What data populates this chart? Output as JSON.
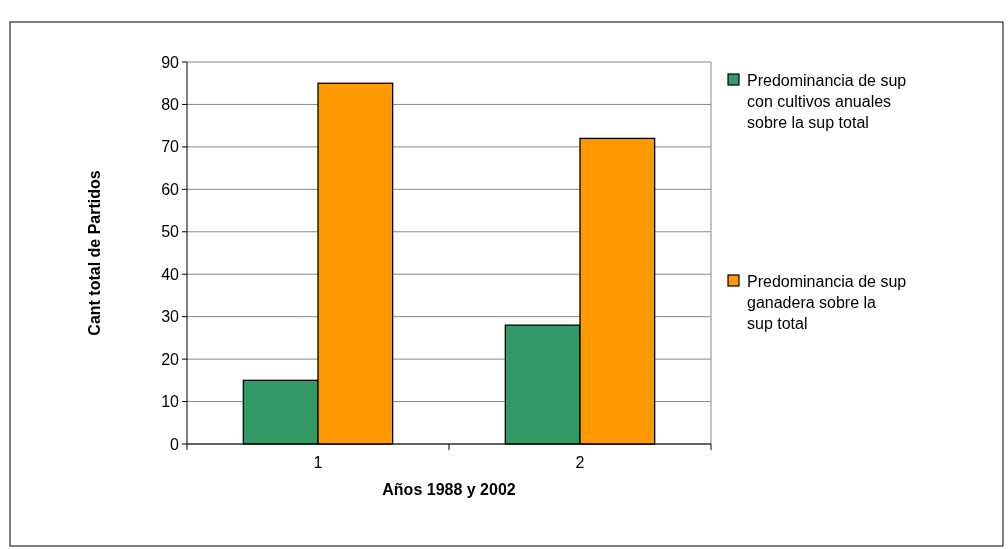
{
  "chart_data": {
    "type": "bar",
    "categories": [
      "1",
      "2"
    ],
    "xlabel": "Años 1988 y 2002",
    "ylabel": "Cant total de Partidos",
    "series": [
      {
        "name": "Predominancia de sup con cultivos anuales sobre la sup total",
        "color": "#339966",
        "values": [
          15,
          28
        ]
      },
      {
        "name": "Predominancia de sup ganadera sobre la sup total",
        "color": "#ff9900",
        "values": [
          85,
          72
        ]
      }
    ],
    "ylim": [
      0,
      90
    ],
    "yticks": [
      0,
      10,
      20,
      30,
      40,
      50,
      60,
      70,
      80,
      90
    ],
    "grid": "y",
    "legend": "right"
  }
}
